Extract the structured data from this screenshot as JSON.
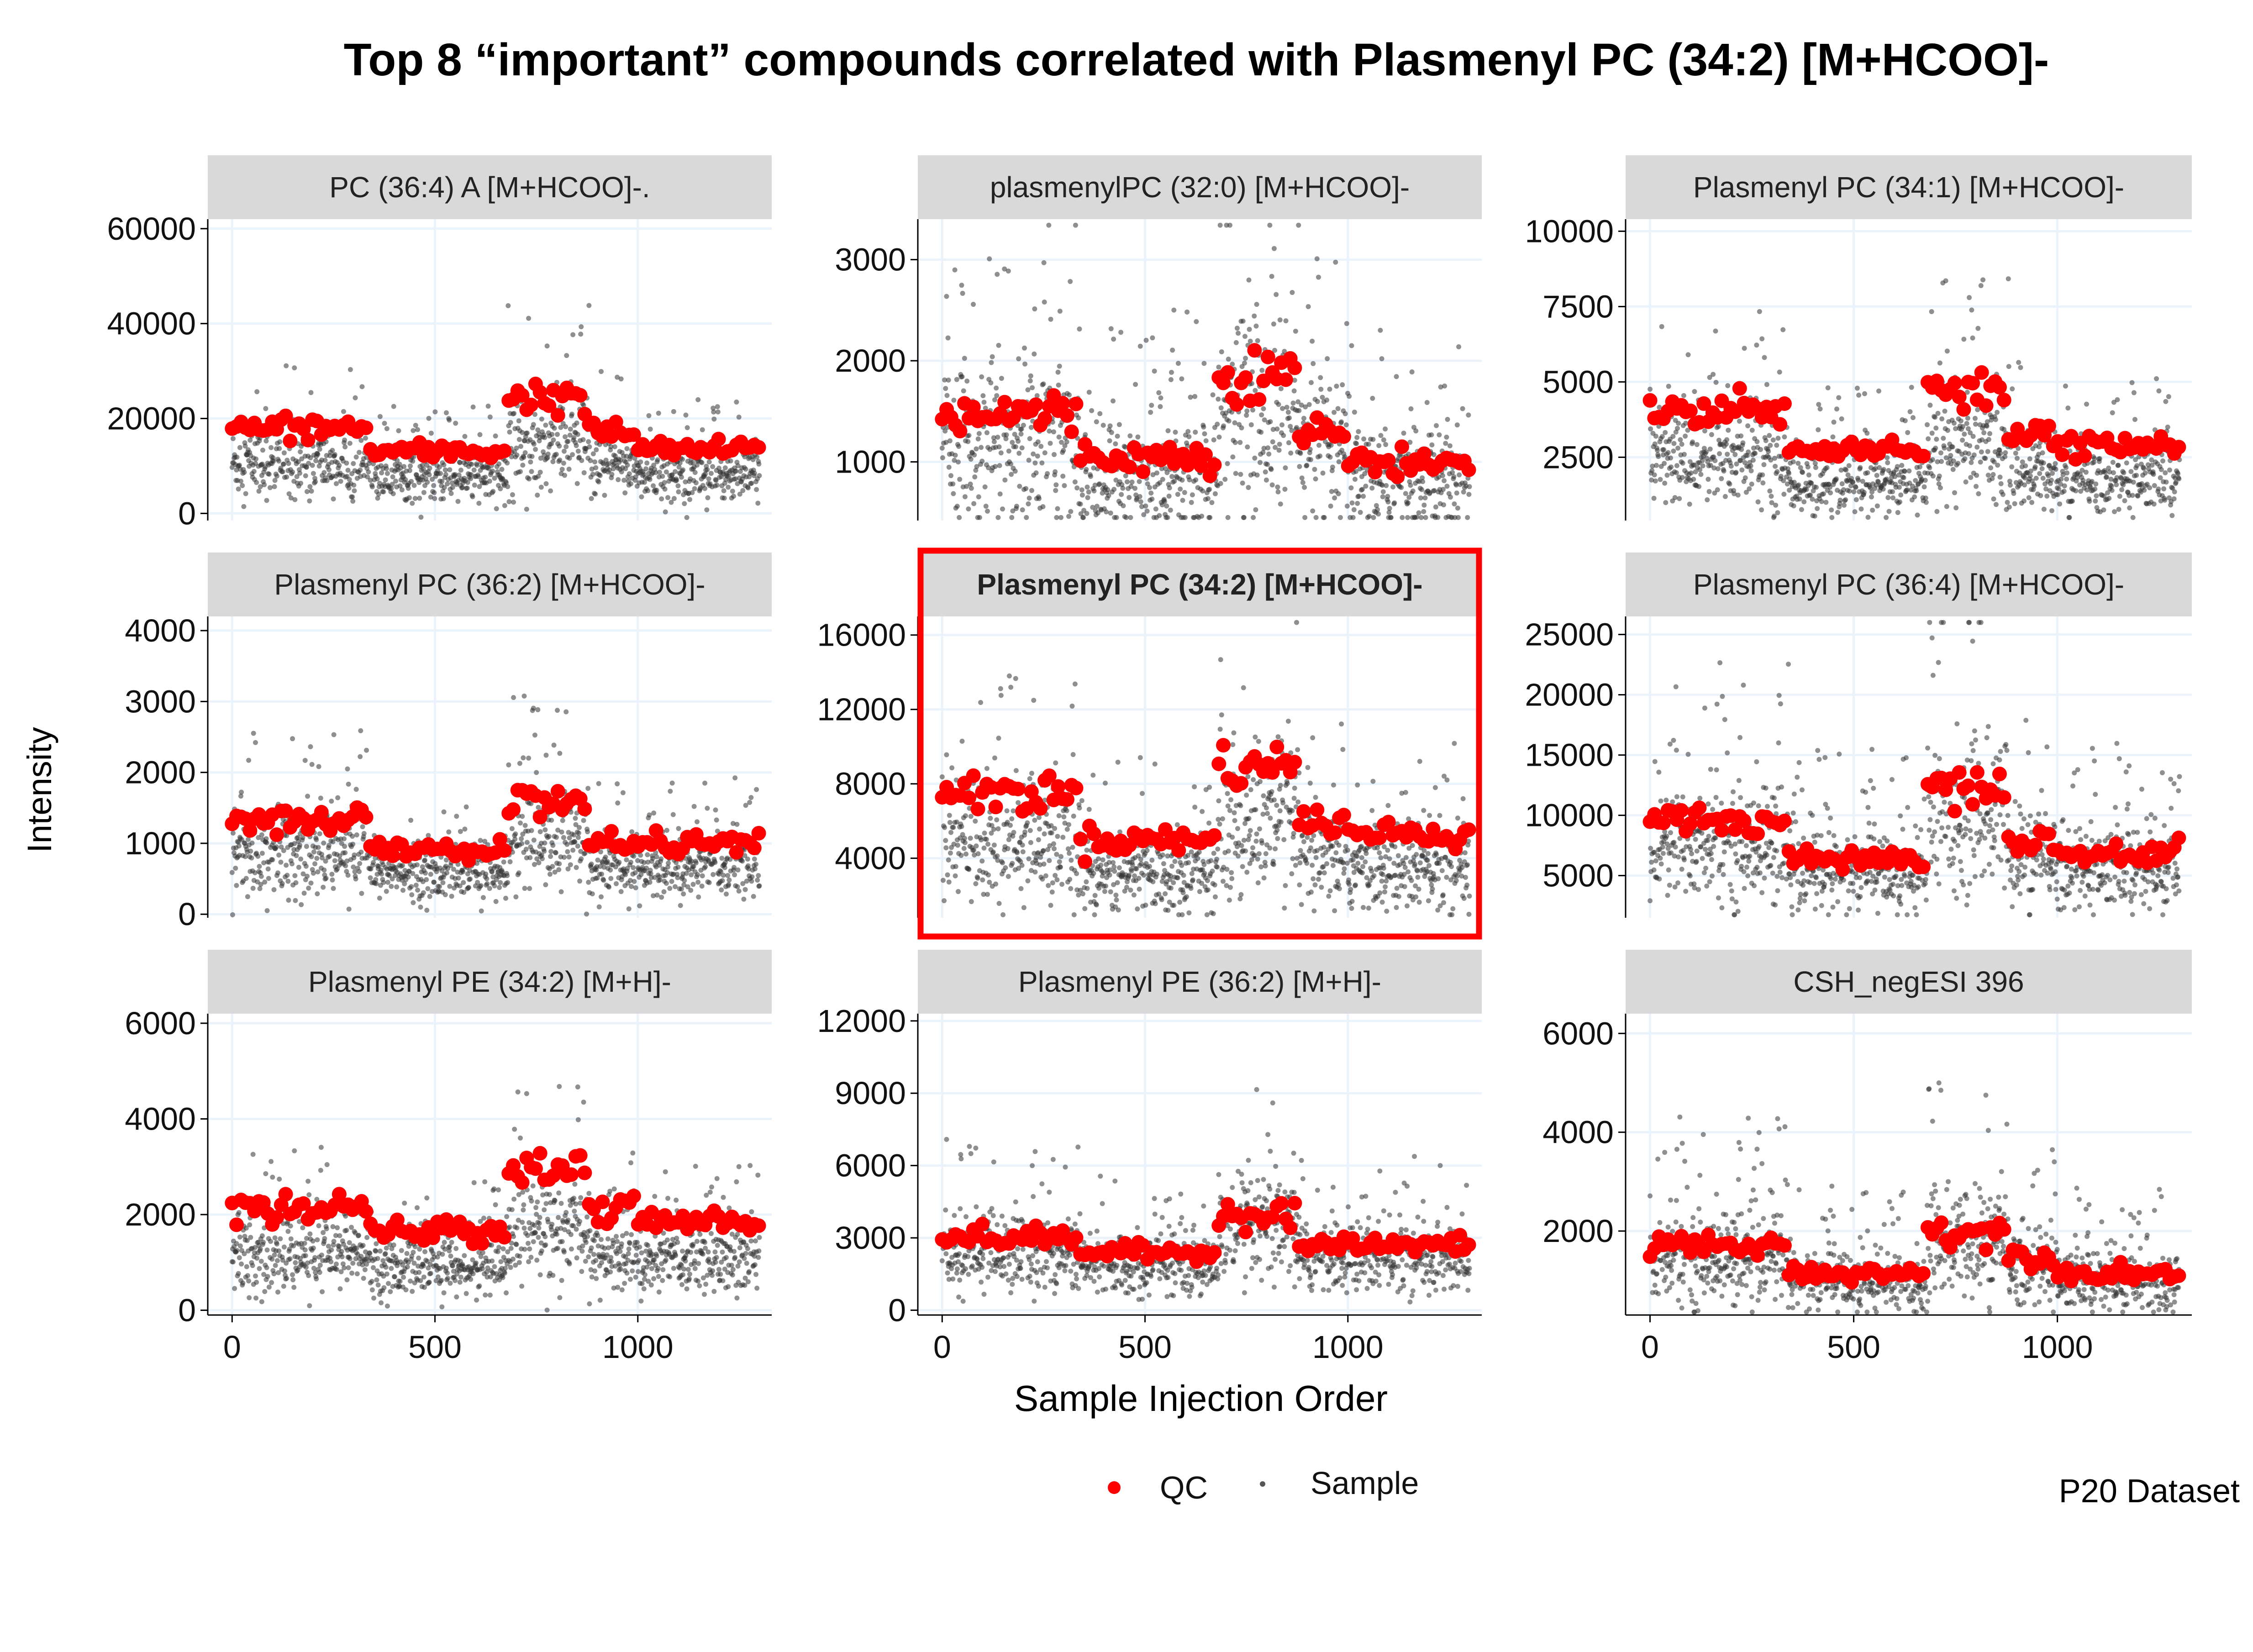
{
  "chart_data": {
    "type": "scatter",
    "title": "Top 8 “important” compounds correlated with Plasmenyl PC (34:2) [M+HCOO]-",
    "xlabel": "Sample Injection Order",
    "ylabel": "Intensity",
    "caption": "P20 Dataset",
    "legend": {
      "position": "bottom",
      "entries": [
        {
          "label": "QC",
          "color": "#ff0000"
        },
        {
          "label": "Sample",
          "color": "#555555"
        }
      ]
    },
    "x_ticks": [
      0,
      500,
      1000
    ],
    "xlim": [
      -60,
      1330
    ],
    "highlight_color": "#ff0000",
    "panels": [
      {
        "title": "PC (36:4) A [M+HCOO]-.",
        "highlight": false,
        "ylim": [
          -1500,
          62000
        ],
        "y_ticks": [
          0,
          20000,
          40000,
          60000
        ],
        "y_tick_labels": [
          "0",
          "20000",
          "40000",
          "60000"
        ],
        "qc_levels": [
          {
            "x0": 0,
            "x1": 340,
            "y": 18000
          },
          {
            "x0": 340,
            "x1": 680,
            "y": 13000
          },
          {
            "x0": 680,
            "x1": 880,
            "y": 24500
          },
          {
            "x0": 880,
            "x1": 1000,
            "y": 17000
          },
          {
            "x0": 1000,
            "x1": 1300,
            "y": 13500
          }
        ],
        "sample_ratio": 0.6
      },
      {
        "title": "plasmenylPC (32:0) [M+HCOO]-",
        "highlight": false,
        "ylim": [
          420,
          3400
        ],
        "y_ticks": [
          1000,
          2000,
          3000
        ],
        "y_tick_labels": [
          "1000",
          "2000",
          "3000"
        ],
        "qc_levels": [
          {
            "x0": 0,
            "x1": 340,
            "y": 1480
          },
          {
            "x0": 340,
            "x1": 680,
            "y": 1050
          },
          {
            "x0": 680,
            "x1": 880,
            "y": 1850
          },
          {
            "x0": 880,
            "x1": 1000,
            "y": 1300
          },
          {
            "x0": 1000,
            "x1": 1300,
            "y": 1000
          }
        ],
        "sample_ratio": 0.8
      },
      {
        "title": "Plasmenyl PC (34:1) [M+HCOO]-",
        "highlight": false,
        "ylim": [
          400,
          10400
        ],
        "y_ticks": [
          2500,
          5000,
          7500,
          10000
        ],
        "y_tick_labels": [
          "2500",
          "5000",
          "7500",
          "10000"
        ],
        "qc_levels": [
          {
            "x0": 0,
            "x1": 340,
            "y": 4100
          },
          {
            "x0": 340,
            "x1": 680,
            "y": 2700
          },
          {
            "x0": 680,
            "x1": 880,
            "y": 4900
          },
          {
            "x0": 880,
            "x1": 1000,
            "y": 3200
          },
          {
            "x0": 1000,
            "x1": 1300,
            "y": 2900
          }
        ],
        "sample_ratio": 0.6
      },
      {
        "title": "Plasmenyl PC (36:2) [M+HCOO]-",
        "highlight": false,
        "ylim": [
          -50,
          4200
        ],
        "y_ticks": [
          0,
          1000,
          2000,
          3000,
          4000
        ],
        "y_tick_labels": [
          "0",
          "1000",
          "2000",
          "3000",
          "4000"
        ],
        "qc_levels": [
          {
            "x0": 0,
            "x1": 340,
            "y": 1350
          },
          {
            "x0": 340,
            "x1": 680,
            "y": 900
          },
          {
            "x0": 680,
            "x1": 880,
            "y": 1600
          },
          {
            "x0": 880,
            "x1": 1000,
            "y": 1000
          },
          {
            "x0": 1000,
            "x1": 1300,
            "y": 1000
          }
        ],
        "sample_ratio": 0.65
      },
      {
        "title": "Plasmenyl PC (34:2) [M+HCOO]-",
        "highlight": true,
        "ylim": [
          800,
          17000
        ],
        "y_ticks": [
          4000,
          8000,
          12000,
          16000
        ],
        "y_tick_labels": [
          "4000",
          "8000",
          "12000",
          "16000"
        ],
        "qc_levels": [
          {
            "x0": 0,
            "x1": 340,
            "y": 7500
          },
          {
            "x0": 340,
            "x1": 680,
            "y": 5000
          },
          {
            "x0": 680,
            "x1": 880,
            "y": 9000
          },
          {
            "x0": 880,
            "x1": 1000,
            "y": 6000
          },
          {
            "x0": 1000,
            "x1": 1300,
            "y": 5300
          }
        ],
        "sample_ratio": 0.65
      },
      {
        "title": "Plasmenyl PC (36:4) [M+HCOO]-",
        "highlight": false,
        "ylim": [
          1500,
          26500
        ],
        "y_ticks": [
          5000,
          10000,
          15000,
          20000,
          25000
        ],
        "y_tick_labels": [
          "5000",
          "10000",
          "15000",
          "20000",
          "25000"
        ],
        "qc_levels": [
          {
            "x0": 0,
            "x1": 340,
            "y": 9500
          },
          {
            "x0": 340,
            "x1": 680,
            "y": 6500
          },
          {
            "x0": 680,
            "x1": 880,
            "y": 12300
          },
          {
            "x0": 880,
            "x1": 1000,
            "y": 8000
          },
          {
            "x0": 1000,
            "x1": 1300,
            "y": 6800
          }
        ],
        "sample_ratio": 0.8
      },
      {
        "title": "Plasmenyl PE (34:2) [M+H]-",
        "highlight": false,
        "ylim": [
          -100,
          6200
        ],
        "y_ticks": [
          0,
          2000,
          4000,
          6000
        ],
        "y_tick_labels": [
          "0",
          "2000",
          "4000",
          "6000"
        ],
        "qc_levels": [
          {
            "x0": 0,
            "x1": 340,
            "y": 2100
          },
          {
            "x0": 340,
            "x1": 680,
            "y": 1650
          },
          {
            "x0": 680,
            "x1": 880,
            "y": 3000
          },
          {
            "x0": 880,
            "x1": 1000,
            "y": 2100
          },
          {
            "x0": 1000,
            "x1": 1300,
            "y": 1850
          }
        ],
        "sample_ratio": 0.55
      },
      {
        "title": "Plasmenyl PE (36:2) [M+H]-",
        "highlight": false,
        "ylim": [
          -200,
          12300
        ],
        "y_ticks": [
          0,
          3000,
          6000,
          9000,
          12000
        ],
        "y_tick_labels": [
          "0",
          "3000",
          "6000",
          "9000",
          "12000"
        ],
        "qc_levels": [
          {
            "x0": 0,
            "x1": 340,
            "y": 3000
          },
          {
            "x0": 340,
            "x1": 680,
            "y": 2400
          },
          {
            "x0": 680,
            "x1": 880,
            "y": 4000
          },
          {
            "x0": 880,
            "x1": 1000,
            "y": 2700
          },
          {
            "x0": 1000,
            "x1": 1300,
            "y": 2700
          }
        ],
        "sample_ratio": 0.8
      },
      {
        "title": "CSH_negESI  396",
        "highlight": false,
        "ylim": [
          300,
          6400
        ],
        "y_ticks": [
          2000,
          4000,
          6000
        ],
        "y_tick_labels": [
          "2000",
          "4000",
          "6000"
        ],
        "qc_levels": [
          {
            "x0": 0,
            "x1": 340,
            "y": 1700
          },
          {
            "x0": 340,
            "x1": 680,
            "y": 1150
          },
          {
            "x0": 680,
            "x1": 880,
            "y": 2000
          },
          {
            "x0": 880,
            "x1": 1000,
            "y": 1500
          },
          {
            "x0": 1000,
            "x1": 1300,
            "y": 1150
          }
        ],
        "sample_ratio": 0.85
      }
    ]
  }
}
